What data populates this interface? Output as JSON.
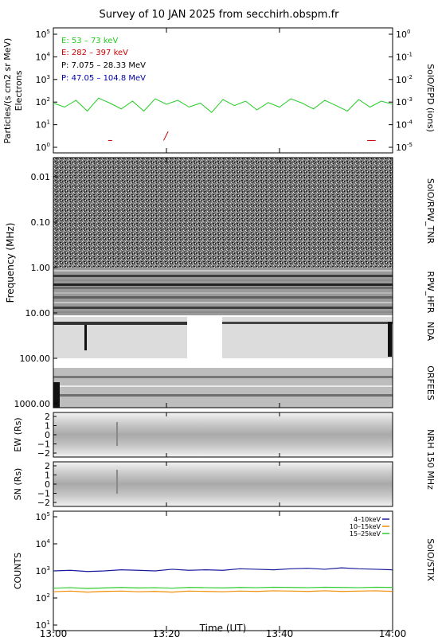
{
  "title": "Survey of 10 JAN 2025 from secchirh.obspm.fr",
  "xlabel": "Time (UT)",
  "time_ticks": [
    "13:00",
    "13:20",
    "13:40",
    "14:00"
  ],
  "time_range_min": [
    0,
    60
  ],
  "colors": {
    "e_low": "#22cc22",
    "e_high": "#cc0000",
    "p_low": "#000000",
    "p_high": "#0000aa",
    "stix_low": "#1a1a9c",
    "stix_mid": "#f08c00",
    "stix_high": "#2ecc2e"
  },
  "panels": {
    "epd": {
      "ylabel": "Particles/(s cm2 sr MeV)",
      "ylabel2": "Electrons",
      "right_label": "SolO/EPD (ions)",
      "yticks_exp": [
        "0",
        "1",
        "2",
        "3",
        "4",
        "5"
      ],
      "y2ticks_exp": [
        "-5",
        "-4",
        "-3",
        "-2",
        "-1",
        "0"
      ],
      "legend": [
        "E: 53 – 73 keV",
        "E: 282 – 397 keV",
        "P: 7.075 – 28.33 MeV",
        "P: 47.05 – 104.8 MeV"
      ]
    },
    "rpw": {
      "ylabel": "Frequency (MHz)",
      "yticks": [
        "0.01",
        "0.10",
        "1.00",
        "10.00",
        "100.00",
        "1000.00"
      ],
      "labels": [
        "SolO/RPW_TNR",
        "RPW_HFR",
        "NDA",
        "ORFEES"
      ]
    },
    "nrh_ew": {
      "ylabel": "EW (Rs)",
      "yticks": [
        "2",
        "1",
        "0",
        "−1",
        "−2"
      ]
    },
    "nrh_sn": {
      "ylabel": "SN (Rs)",
      "yticks": [
        "2",
        "1",
        "0",
        "−1",
        "−2"
      ]
    },
    "nrh_label": "NRH 150 MHz",
    "stix": {
      "ylabel": "COUNTS",
      "right_label": "SolO/STIX",
      "yticks_exp": [
        "1",
        "2",
        "3",
        "4",
        "5"
      ],
      "legend": [
        "4–10keV",
        "10–15keV",
        "15–25keV"
      ]
    }
  },
  "chart_data": [
    {
      "type": "line",
      "title": "Survey of 10 JAN 2025 from secchirh.obspm.fr",
      "panel": "SolO/EPD",
      "xlabel": "Time (UT)",
      "ylabel": "Particles/(s cm2 sr MeV)",
      "yscale": "log",
      "ylim": [
        0.5,
        100000
      ],
      "x_unit": "minutes after 13:00",
      "series": [
        {
          "name": "E: 53 – 73 keV",
          "x": [
            0,
            2,
            4,
            6,
            8,
            10,
            12,
            14,
            16,
            18,
            20,
            22,
            24,
            26,
            28,
            30,
            32,
            34,
            36,
            38,
            40,
            42,
            44,
            46,
            48,
            50,
            52,
            54,
            56,
            58,
            60
          ],
          "values": [
            90,
            60,
            120,
            40,
            150,
            90,
            50,
            110,
            40,
            140,
            80,
            120,
            60,
            90,
            35,
            130,
            70,
            110,
            45,
            95,
            60,
            140,
            90,
            50,
            120,
            70,
            40,
            130,
            60,
            110,
            80
          ]
        },
        {
          "name": "E: 282 – 397 keV",
          "x": [
            9.7,
            10.4,
            19.5,
            20.3,
            55.5,
            57.0
          ],
          "values": [
            2,
            2,
            2,
            5,
            2,
            2
          ]
        }
      ]
    },
    {
      "type": "line",
      "panel": "SolO/STIX",
      "ylabel": "COUNTS",
      "yscale": "log",
      "ylim": [
        10,
        100000
      ],
      "x_unit": "minutes after 13:00",
      "series": [
        {
          "name": "4–10keV",
          "x": [
            0,
            3,
            6,
            9,
            12,
            15,
            18,
            21,
            24,
            27,
            30,
            33,
            36,
            39,
            42,
            45,
            48,
            51,
            54,
            57,
            60
          ],
          "values": [
            1000,
            1050,
            950,
            1000,
            1100,
            1050,
            1000,
            1150,
            1050,
            1100,
            1050,
            1200,
            1150,
            1100,
            1200,
            1250,
            1150,
            1300,
            1200,
            1150,
            1100
          ]
        },
        {
          "name": "10–15keV",
          "x": [
            0,
            3,
            6,
            9,
            12,
            15,
            18,
            21,
            24,
            27,
            30,
            33,
            36,
            39,
            42,
            45,
            48,
            51,
            54,
            57,
            60
          ],
          "values": [
            170,
            180,
            165,
            175,
            180,
            170,
            175,
            165,
            180,
            175,
            170,
            180,
            175,
            185,
            180,
            175,
            185,
            175,
            180,
            185,
            175
          ]
        },
        {
          "name": "15–25keV",
          "x": [
            0,
            3,
            6,
            9,
            12,
            15,
            18,
            21,
            24,
            27,
            30,
            33,
            36,
            39,
            42,
            45,
            48,
            51,
            54,
            57,
            60
          ],
          "values": [
            230,
            240,
            225,
            235,
            245,
            235,
            240,
            230,
            245,
            240,
            235,
            245,
            240,
            250,
            245,
            240,
            250,
            245,
            240,
            250,
            245
          ]
        }
      ]
    }
  ]
}
